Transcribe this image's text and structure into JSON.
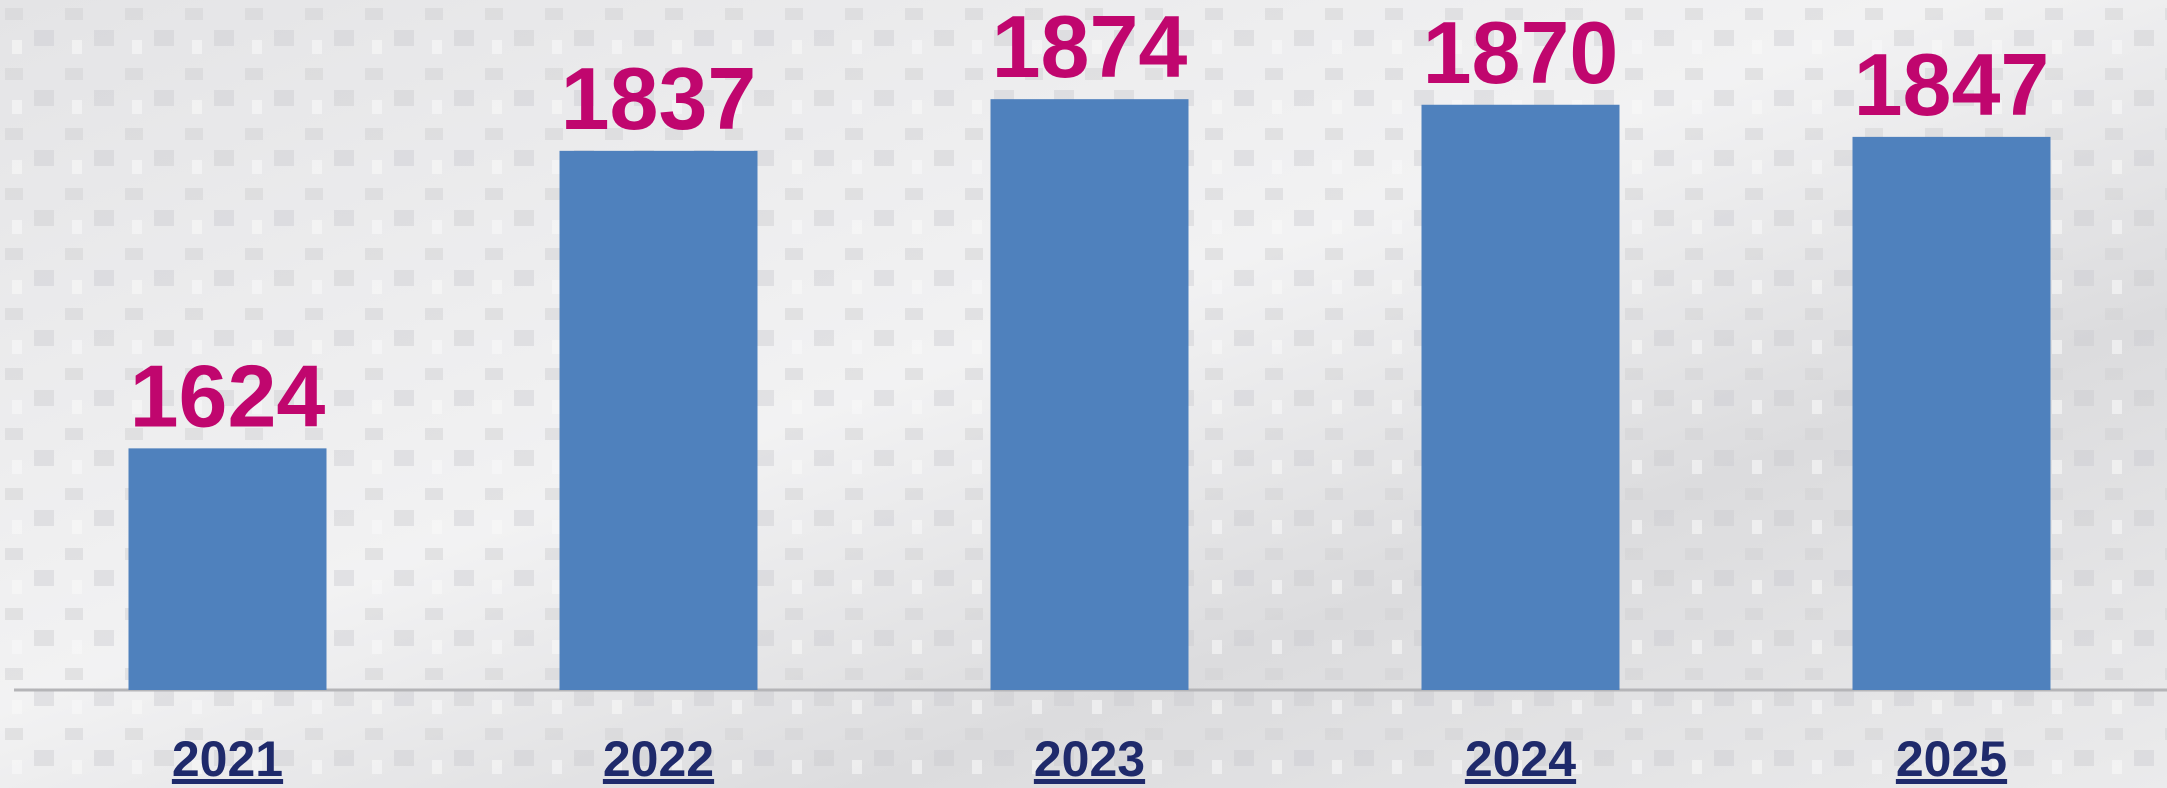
{
  "chart_data": {
    "type": "bar",
    "categories": [
      "2021",
      "2022",
      "2023",
      "2024",
      "2025"
    ],
    "values": [
      1624,
      1837,
      1874,
      1870,
      1847
    ],
    "color": "#4f81bd",
    "label_color": "#c0066e",
    "category_color": "#1f2a6b",
    "ylim": [
      1451,
      1945
    ]
  }
}
